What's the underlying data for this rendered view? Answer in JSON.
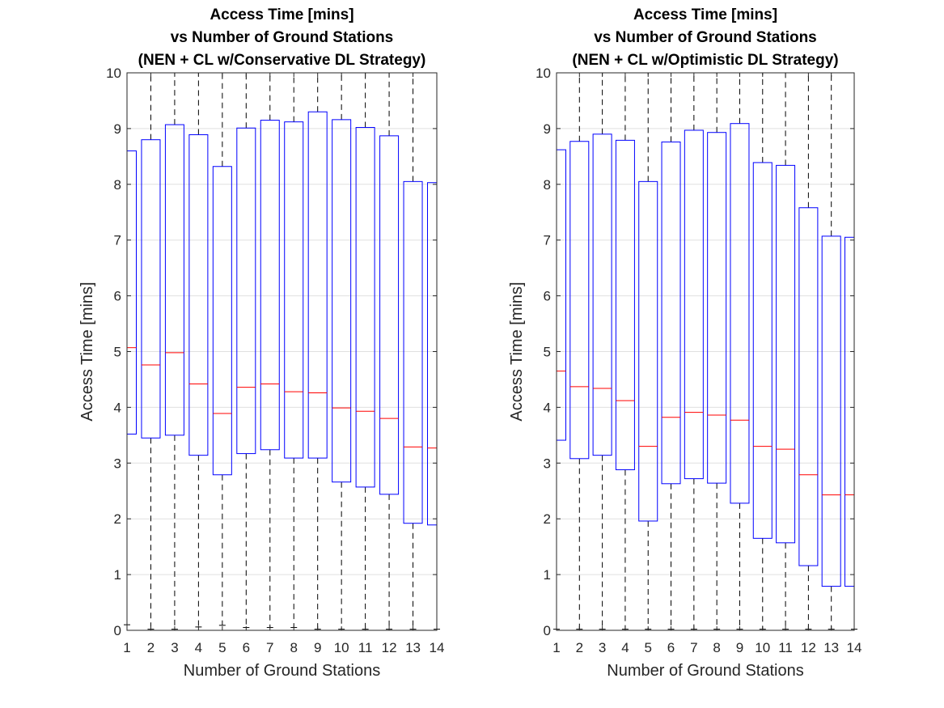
{
  "chart_data": [
    {
      "type": "box",
      "title": [
        "Access Time [mins]",
        "vs Number of Ground Stations",
        "(NEN + CL w/Conservative DL Strategy)"
      ],
      "xlabel": "Number of Ground Stations",
      "ylabel": "Access Time [mins]",
      "ylim": [
        0,
        10
      ],
      "xlim": [
        1,
        14
      ],
      "yticks": [
        0,
        1,
        2,
        3,
        4,
        5,
        6,
        7,
        8,
        9,
        10
      ],
      "categories": [
        "1",
        "2",
        "3",
        "4",
        "5",
        "6",
        "7",
        "8",
        "9",
        "10",
        "11",
        "12",
        "13",
        "14"
      ],
      "grid": true,
      "boxes": [
        {
          "x": 1,
          "q1": 3.52,
          "median": 5.07,
          "q3": 8.6,
          "whisker_low": 0.1,
          "whisker_high": 10
        },
        {
          "x": 2,
          "q1": 3.45,
          "median": 4.76,
          "q3": 8.8,
          "whisker_low": 0.02,
          "whisker_high": 10
        },
        {
          "x": 3,
          "q1": 3.5,
          "median": 4.98,
          "q3": 9.07,
          "whisker_low": 0.02,
          "whisker_high": 10
        },
        {
          "x": 4,
          "q1": 3.14,
          "median": 4.42,
          "q3": 8.89,
          "whisker_low": 0.06,
          "whisker_high": 10
        },
        {
          "x": 5,
          "q1": 2.79,
          "median": 3.89,
          "q3": 8.32,
          "whisker_low": 0.09,
          "whisker_high": 10
        },
        {
          "x": 6,
          "q1": 3.17,
          "median": 4.36,
          "q3": 9.01,
          "whisker_low": 0.05,
          "whisker_high": 10
        },
        {
          "x": 7,
          "q1": 3.24,
          "median": 4.42,
          "q3": 9.15,
          "whisker_low": 0.05,
          "whisker_high": 10
        },
        {
          "x": 8,
          "q1": 3.09,
          "median": 4.28,
          "q3": 9.12,
          "whisker_low": 0.05,
          "whisker_high": 10
        },
        {
          "x": 9,
          "q1": 3.09,
          "median": 4.26,
          "q3": 9.3,
          "whisker_low": 0.02,
          "whisker_high": 10
        },
        {
          "x": 10,
          "q1": 2.66,
          "median": 3.99,
          "q3": 9.16,
          "whisker_low": 0.02,
          "whisker_high": 10
        },
        {
          "x": 11,
          "q1": 2.57,
          "median": 3.93,
          "q3": 9.02,
          "whisker_low": 0.02,
          "whisker_high": 10
        },
        {
          "x": 12,
          "q1": 2.44,
          "median": 3.8,
          "q3": 8.87,
          "whisker_low": 0.02,
          "whisker_high": 10
        },
        {
          "x": 13,
          "q1": 1.92,
          "median": 3.29,
          "q3": 8.05,
          "whisker_low": 0.02,
          "whisker_high": 10
        },
        {
          "x": 14,
          "q1": 1.89,
          "median": 3.27,
          "q3": 8.03,
          "whisker_low": 0.02,
          "whisker_high": 10
        }
      ]
    },
    {
      "type": "box",
      "title": [
        "Access Time [mins]",
        "vs Number of Ground Stations",
        "(NEN + CL w/Optimistic DL Strategy)"
      ],
      "xlabel": "Number of Ground Stations",
      "ylabel": "Access Time [mins]",
      "ylim": [
        0,
        10
      ],
      "xlim": [
        1,
        14
      ],
      "yticks": [
        0,
        1,
        2,
        3,
        4,
        5,
        6,
        7,
        8,
        9,
        10
      ],
      "categories": [
        "1",
        "2",
        "3",
        "4",
        "5",
        "6",
        "7",
        "8",
        "9",
        "10",
        "11",
        "12",
        "13",
        "14"
      ],
      "grid": true,
      "boxes": [
        {
          "x": 1,
          "q1": 3.41,
          "median": 4.65,
          "q3": 8.62,
          "whisker_low": 0.02,
          "whisker_high": 10
        },
        {
          "x": 2,
          "q1": 3.08,
          "median": 4.37,
          "q3": 8.77,
          "whisker_low": 0.02,
          "whisker_high": 10
        },
        {
          "x": 3,
          "q1": 3.14,
          "median": 4.34,
          "q3": 8.9,
          "whisker_low": 0.02,
          "whisker_high": 10
        },
        {
          "x": 4,
          "q1": 2.88,
          "median": 4.12,
          "q3": 8.79,
          "whisker_low": 0.02,
          "whisker_high": 10
        },
        {
          "x": 5,
          "q1": 1.96,
          "median": 3.3,
          "q3": 8.05,
          "whisker_low": 0.02,
          "whisker_high": 10
        },
        {
          "x": 6,
          "q1": 2.63,
          "median": 3.82,
          "q3": 8.76,
          "whisker_low": 0.02,
          "whisker_high": 10
        },
        {
          "x": 7,
          "q1": 2.72,
          "median": 3.91,
          "q3": 8.97,
          "whisker_low": 0.02,
          "whisker_high": 10
        },
        {
          "x": 8,
          "q1": 2.64,
          "median": 3.86,
          "q3": 8.93,
          "whisker_low": 0.02,
          "whisker_high": 10
        },
        {
          "x": 9,
          "q1": 2.28,
          "median": 3.77,
          "q3": 9.09,
          "whisker_low": 0.02,
          "whisker_high": 10
        },
        {
          "x": 10,
          "q1": 1.65,
          "median": 3.3,
          "q3": 8.39,
          "whisker_low": 0.02,
          "whisker_high": 10
        },
        {
          "x": 11,
          "q1": 1.57,
          "median": 3.25,
          "q3": 8.34,
          "whisker_low": 0.02,
          "whisker_high": 10
        },
        {
          "x": 12,
          "q1": 1.16,
          "median": 2.79,
          "q3": 7.58,
          "whisker_low": 0.02,
          "whisker_high": 10
        },
        {
          "x": 13,
          "q1": 0.79,
          "median": 2.43,
          "q3": 7.07,
          "whisker_low": 0.02,
          "whisker_high": 10
        },
        {
          "x": 14,
          "q1": 0.79,
          "median": 2.43,
          "q3": 7.05,
          "whisker_low": 0.02,
          "whisker_high": 10
        }
      ]
    }
  ],
  "colors": {
    "box": "#0000ff",
    "median": "#ff0000",
    "whisker": "#000000",
    "grid": "#e0e0e0",
    "axes": "#262626"
  }
}
